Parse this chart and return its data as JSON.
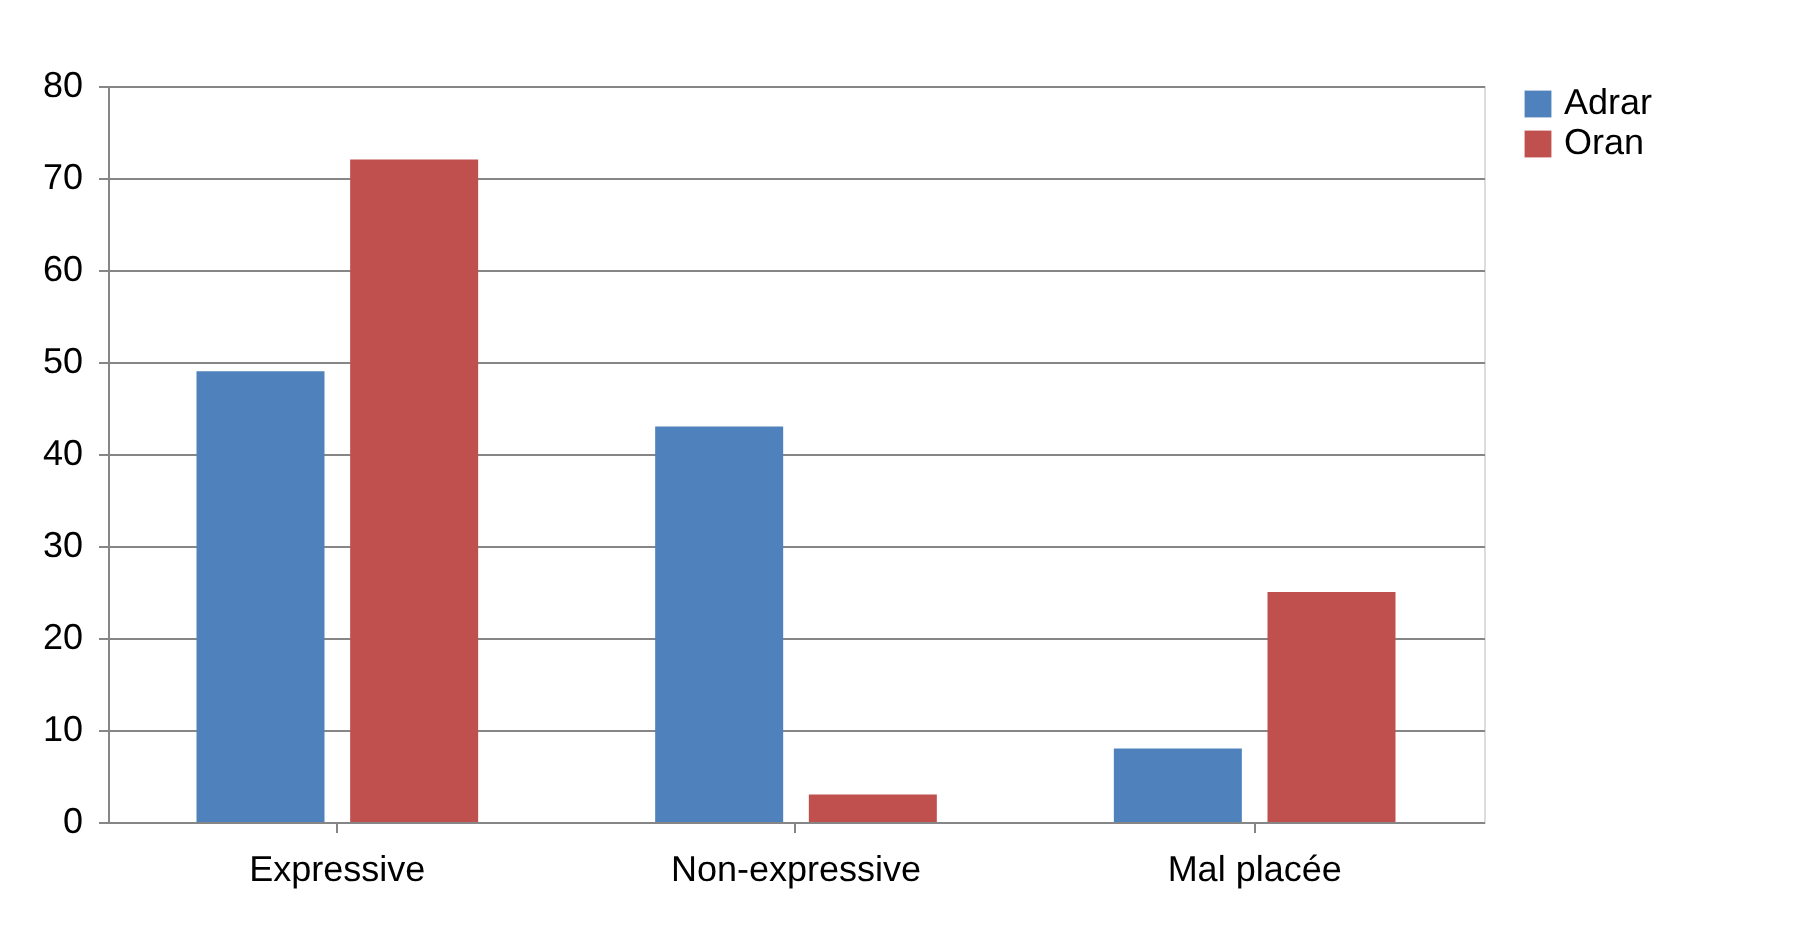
{
  "chart_data": {
    "type": "bar",
    "categories": [
      "Expressive",
      "Non-expressive",
      "Mal placée"
    ],
    "series": [
      {
        "name": "Adrar",
        "color": "#4f81bd",
        "values": [
          49,
          43,
          8
        ]
      },
      {
        "name": "Oran",
        "color": "#c0504d",
        "values": [
          72,
          3,
          25
        ]
      }
    ],
    "ylim": [
      0,
      80
    ],
    "yticks": [
      0,
      10,
      20,
      30,
      40,
      50,
      60,
      70,
      80
    ],
    "grid": "y",
    "legend": "right"
  }
}
